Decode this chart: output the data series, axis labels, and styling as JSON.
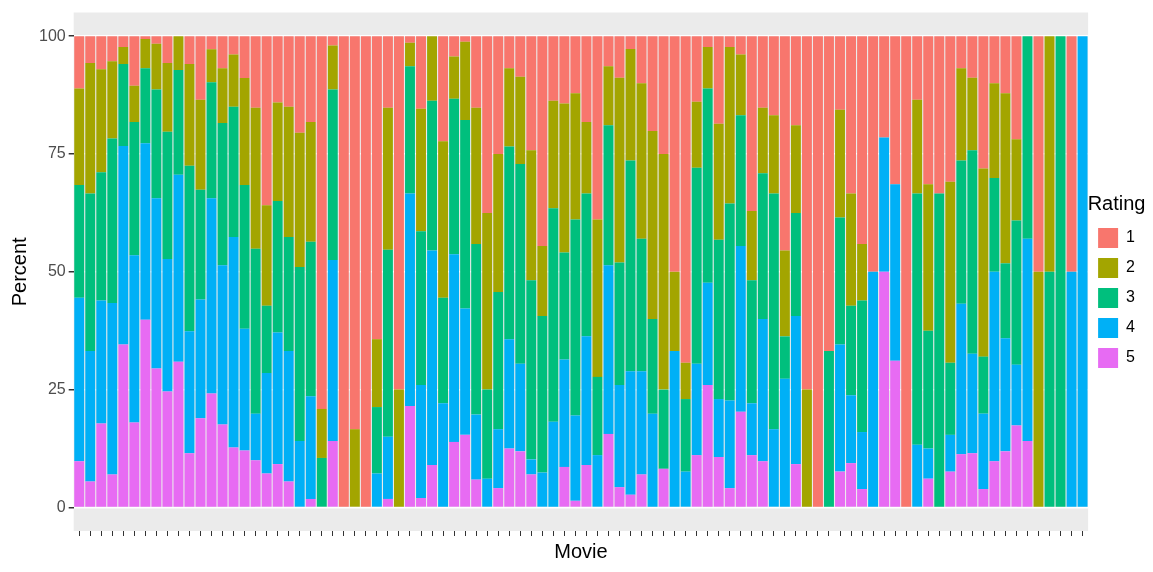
{
  "chart_data": {
    "type": "bar",
    "stacked": true,
    "xlabel": "Movie",
    "ylabel": "Percent",
    "legend_title": "Rating",
    "legend": "right",
    "grid": "y",
    "tick_labels": "y",
    "ylim": [
      -5,
      105
    ],
    "yticks": [
      0,
      25,
      50,
      75,
      100
    ],
    "categories": [
      null,
      null,
      null,
      null,
      null,
      null,
      null,
      null,
      null,
      null,
      null,
      null,
      null,
      null,
      null,
      null,
      null,
      null,
      null,
      null,
      null,
      null,
      null,
      null,
      null,
      null,
      null,
      null,
      null,
      null,
      null,
      null,
      null,
      null,
      null,
      null,
      null,
      null,
      null,
      null,
      null,
      null,
      null,
      null,
      null,
      null,
      null,
      null,
      null,
      null,
      null,
      null,
      null,
      null,
      null,
      null,
      null,
      null,
      null,
      null,
      null,
      null,
      null,
      null,
      null,
      null,
      null,
      null,
      null,
      null,
      null,
      null,
      null,
      null,
      null,
      null,
      null,
      null,
      null,
      null,
      null,
      null,
      null,
      null,
      null,
      null,
      null,
      null,
      null,
      null,
      null,
      null
    ],
    "series": [
      {
        "name": "5",
        "color": "#e76bf3",
        "values": [
          9.8,
          5.5,
          17.8,
          7.0,
          34.6,
          18.0,
          39.8,
          29.5,
          24.6,
          30.9,
          11.5,
          18.9,
          24.2,
          17.6,
          12.7,
          12.1,
          10.0,
          7.2,
          9.2,
          5.5,
          0,
          1.8,
          0,
          14.1,
          0,
          0,
          0,
          0,
          1.8,
          0,
          21.5,
          2.0,
          9.0,
          0,
          13.9,
          15.4,
          5.9,
          0,
          4.1,
          12.5,
          11.9,
          7.0,
          0,
          0,
          8.6,
          1.4,
          9.0,
          0,
          15.6,
          4.3,
          2.7,
          7.0,
          0,
          8.2,
          0,
          0,
          11.1,
          26.0,
          10.7,
          4.1,
          20.3,
          11.1,
          9.8,
          0,
          0,
          9.2,
          0,
          0,
          0,
          7.6,
          9.4,
          3.9,
          0,
          50.0,
          31.1,
          0,
          0,
          6.1,
          0,
          7.6,
          11.3,
          11.5,
          3.9,
          9.8,
          11.9,
          17.4,
          14.1,
          0,
          0,
          0,
          0,
          0
        ]
      },
      {
        "name": "4",
        "color": "#00b0f6",
        "values": [
          34.7,
          27.7,
          26.1,
          36.4,
          42.1,
          35.5,
          37.5,
          36.1,
          28.1,
          39.7,
          25.9,
          25.2,
          41.4,
          33.8,
          44.7,
          25.8,
          9.9,
          21.3,
          27.9,
          27.7,
          14.1,
          21.8,
          0,
          38.4,
          0,
          0,
          0,
          7.2,
          13.2,
          0,
          45.1,
          24.0,
          45.5,
          22.1,
          39.8,
          26.8,
          13.8,
          6.1,
          12.5,
          23.2,
          18.6,
          3.2,
          7.4,
          18.2,
          22.8,
          18.1,
          27.3,
          11.1,
          35.8,
          21.7,
          26.2,
          21.9,
          19.9,
          0,
          33.2,
          7.6,
          19.4,
          21.7,
          12.3,
          18.6,
          35.2,
          11.0,
          30.2,
          16.6,
          27.3,
          31.4,
          0,
          0,
          0,
          27.0,
          14.4,
          12.1,
          50.0,
          28.5,
          37.5,
          0,
          13.3,
          6.4,
          0,
          7.8,
          31.9,
          21.1,
          16.0,
          40.2,
          24.0,
          12.9,
          42.9,
          0,
          0,
          0,
          50.0,
          100
        ]
      },
      {
        "name": "3",
        "color": "#00bf7d",
        "values": [
          23.9,
          33.4,
          27.2,
          34.9,
          17.4,
          28.3,
          15.9,
          23.1,
          27.0,
          22.2,
          35.1,
          23.3,
          24.6,
          30.2,
          27.6,
          30.5,
          35.0,
          14.3,
          27.9,
          24.2,
          36.9,
          32.8,
          10.5,
          36.2,
          0,
          0,
          0,
          14.1,
          39.7,
          0,
          27.0,
          32.6,
          31.8,
          22.4,
          33.0,
          40.0,
          36.2,
          18.9,
          29.1,
          40.9,
          42.4,
          38.0,
          33.2,
          45.3,
          22.7,
          41.6,
          30.3,
          16.6,
          29.7,
          26.0,
          44.7,
          28.1,
          20.1,
          16.8,
          0,
          15.4,
          41.6,
          41.2,
          33.8,
          41.8,
          27.7,
          26.1,
          30.9,
          50.0,
          9.0,
          21.9,
          0,
          0,
          33.2,
          26.9,
          19.0,
          27.9,
          0,
          0,
          0,
          0,
          53.3,
          25.0,
          66.6,
          15.3,
          30.4,
          43.2,
          12.1,
          19.9,
          15.9,
          30.6,
          43.0,
          0,
          50.0,
          100,
          0,
          0
        ]
      },
      {
        "name": "2",
        "color": "#a3a500",
        "values": [
          20.5,
          27.7,
          21.9,
          16.4,
          3.6,
          7.7,
          6.2,
          9.7,
          14.6,
          7.2,
          21.6,
          19.1,
          7.0,
          11.6,
          11.1,
          22.7,
          29.9,
          21.3,
          20.9,
          27.6,
          28.5,
          25.4,
          10.4,
          9.3,
          0,
          16.6,
          0,
          14.4,
          30.1,
          25.0,
          5.0,
          26.0,
          13.7,
          33.2,
          9.0,
          16.6,
          28.9,
          37.5,
          29.3,
          16.6,
          18.5,
          27.6,
          14.9,
          22.8,
          31.6,
          26.8,
          15.2,
          33.4,
          12.5,
          39.2,
          23.7,
          33.0,
          39.9,
          50.0,
          16.8,
          7.7,
          14.0,
          8.8,
          24.6,
          33.2,
          12.9,
          14.7,
          13.9,
          16.6,
          18.2,
          18.6,
          25.0,
          0,
          0,
          22.9,
          23.8,
          12.0,
          0,
          0,
          0,
          0,
          19.9,
          31.1,
          0,
          38.4,
          19.6,
          15.4,
          39.9,
          20.1,
          36.1,
          17.2,
          0,
          50.0,
          50.0,
          0,
          0,
          0
        ]
      },
      {
        "name": "1",
        "color": "#f8766d",
        "values": [
          11.1,
          5.7,
          7.0,
          5.3,
          2.3,
          10.5,
          0.6,
          1.6,
          5.7,
          0,
          5.9,
          13.5,
          2.8,
          6.8,
          3.9,
          8.9,
          15.2,
          35.9,
          14.1,
          15.0,
          20.5,
          18.2,
          79.1,
          2.0,
          100,
          83.4,
          100,
          64.3,
          15.2,
          75.0,
          1.4,
          15.4,
          0,
          22.3,
          4.3,
          1.2,
          15.2,
          37.5,
          25.0,
          6.8,
          8.6,
          24.2,
          44.5,
          13.7,
          14.3,
          12.1,
          18.2,
          38.9,
          6.4,
          8.8,
          2.7,
          10.0,
          20.1,
          25.0,
          50.0,
          69.3,
          13.9,
          2.3,
          18.6,
          2.3,
          3.9,
          37.1,
          15.2,
          16.8,
          45.5,
          18.9,
          75.0,
          100,
          66.8,
          15.6,
          33.4,
          44.1,
          50.0,
          21.5,
          31.4,
          100,
          13.5,
          31.4,
          33.4,
          30.9,
          6.8,
          8.8,
          28.1,
          10.0,
          12.1,
          21.9,
          0,
          50.0,
          0,
          0,
          50.0,
          0
        ]
      }
    ]
  }
}
